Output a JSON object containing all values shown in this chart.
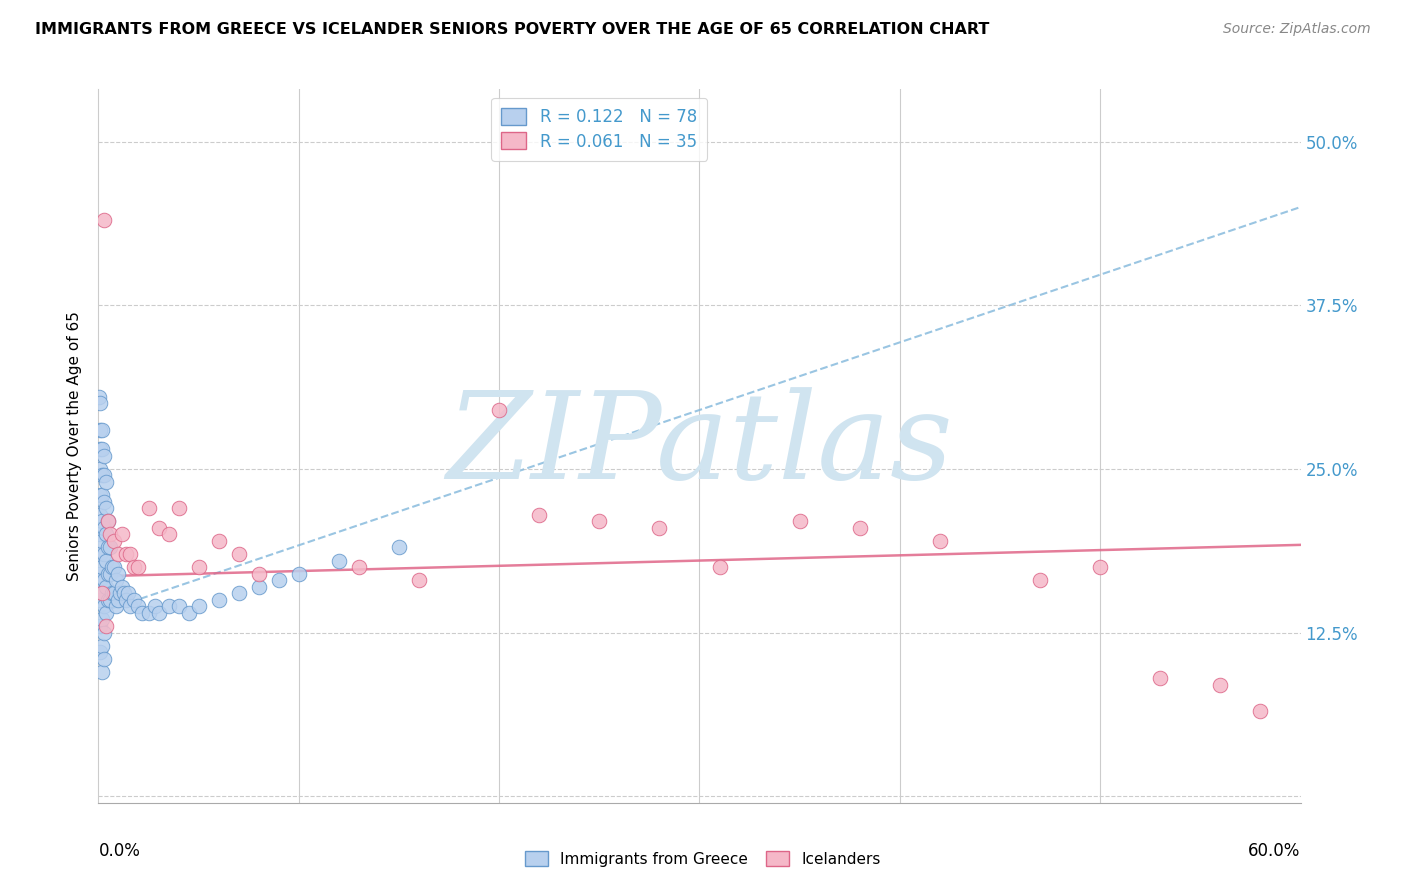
{
  "title": "IMMIGRANTS FROM GREECE VS ICELANDER SENIORS POVERTY OVER THE AGE OF 65 CORRELATION CHART",
  "source": "Source: ZipAtlas.com",
  "ylabel": "Seniors Poverty Over the Age of 65",
  "yticks": [
    0.0,
    0.125,
    0.25,
    0.375,
    0.5
  ],
  "ytick_labels": [
    "",
    "12.5%",
    "25.0%",
    "37.5%",
    "50.0%"
  ],
  "xlim": [
    0.0,
    0.6
  ],
  "ylim": [
    -0.005,
    0.54
  ],
  "legend_text1": "R = 0.122   N = 78",
  "legend_text2": "R = 0.061   N = 35",
  "color_blue_fill": "#b8d0ee",
  "color_blue_edge": "#6699cc",
  "color_pink_fill": "#f5b8c8",
  "color_pink_edge": "#dd6688",
  "color_blue_trend": "#88bbdd",
  "color_pink_trend": "#e06688",
  "color_blue_label": "#4499cc",
  "watermark": "ZIPatlas",
  "watermark_color": "#d0e4f0",
  "blue_x": [
    0.0005,
    0.0008,
    0.001,
    0.001,
    0.001,
    0.001,
    0.001,
    0.001,
    0.001,
    0.001,
    0.001,
    0.001,
    0.001,
    0.001,
    0.002,
    0.002,
    0.002,
    0.002,
    0.002,
    0.002,
    0.002,
    0.002,
    0.002,
    0.002,
    0.002,
    0.003,
    0.003,
    0.003,
    0.003,
    0.003,
    0.003,
    0.003,
    0.003,
    0.003,
    0.004,
    0.004,
    0.004,
    0.004,
    0.004,
    0.004,
    0.005,
    0.005,
    0.005,
    0.005,
    0.006,
    0.006,
    0.006,
    0.007,
    0.007,
    0.008,
    0.008,
    0.009,
    0.009,
    0.01,
    0.01,
    0.011,
    0.012,
    0.013,
    0.014,
    0.015,
    0.016,
    0.018,
    0.02,
    0.022,
    0.025,
    0.028,
    0.03,
    0.035,
    0.04,
    0.045,
    0.05,
    0.06,
    0.07,
    0.08,
    0.09,
    0.1,
    0.12,
    0.15
  ],
  "blue_y": [
    0.305,
    0.17,
    0.3,
    0.28,
    0.265,
    0.25,
    0.23,
    0.215,
    0.2,
    0.185,
    0.165,
    0.15,
    0.13,
    0.11,
    0.28,
    0.265,
    0.245,
    0.23,
    0.21,
    0.195,
    0.175,
    0.155,
    0.135,
    0.115,
    0.095,
    0.26,
    0.245,
    0.225,
    0.205,
    0.185,
    0.165,
    0.145,
    0.125,
    0.105,
    0.24,
    0.22,
    0.2,
    0.18,
    0.16,
    0.14,
    0.21,
    0.19,
    0.17,
    0.15,
    0.19,
    0.17,
    0.15,
    0.175,
    0.155,
    0.175,
    0.155,
    0.165,
    0.145,
    0.17,
    0.15,
    0.155,
    0.16,
    0.155,
    0.15,
    0.155,
    0.145,
    0.15,
    0.145,
    0.14,
    0.14,
    0.145,
    0.14,
    0.145,
    0.145,
    0.14,
    0.145,
    0.15,
    0.155,
    0.16,
    0.165,
    0.17,
    0.18,
    0.19
  ],
  "pink_x": [
    0.003,
    0.005,
    0.006,
    0.008,
    0.01,
    0.012,
    0.014,
    0.016,
    0.018,
    0.02,
    0.025,
    0.03,
    0.035,
    0.04,
    0.05,
    0.06,
    0.07,
    0.08,
    0.13,
    0.16,
    0.2,
    0.22,
    0.25,
    0.28,
    0.31,
    0.35,
    0.38,
    0.42,
    0.47,
    0.5,
    0.53,
    0.56,
    0.58,
    0.002,
    0.004
  ],
  "pink_y": [
    0.44,
    0.21,
    0.2,
    0.195,
    0.185,
    0.2,
    0.185,
    0.185,
    0.175,
    0.175,
    0.22,
    0.205,
    0.2,
    0.22,
    0.175,
    0.195,
    0.185,
    0.17,
    0.175,
    0.165,
    0.295,
    0.215,
    0.21,
    0.205,
    0.175,
    0.21,
    0.205,
    0.195,
    0.165,
    0.175,
    0.09,
    0.085,
    0.065,
    0.155,
    0.13
  ],
  "blue_trend_x": [
    0.0,
    0.6
  ],
  "blue_trend_y": [
    0.14,
    0.45
  ],
  "pink_trend_x": [
    0.0,
    0.6
  ],
  "pink_trend_y": [
    0.168,
    0.192
  ],
  "xtick_lines": [
    0.1,
    0.2,
    0.3,
    0.4,
    0.5
  ]
}
